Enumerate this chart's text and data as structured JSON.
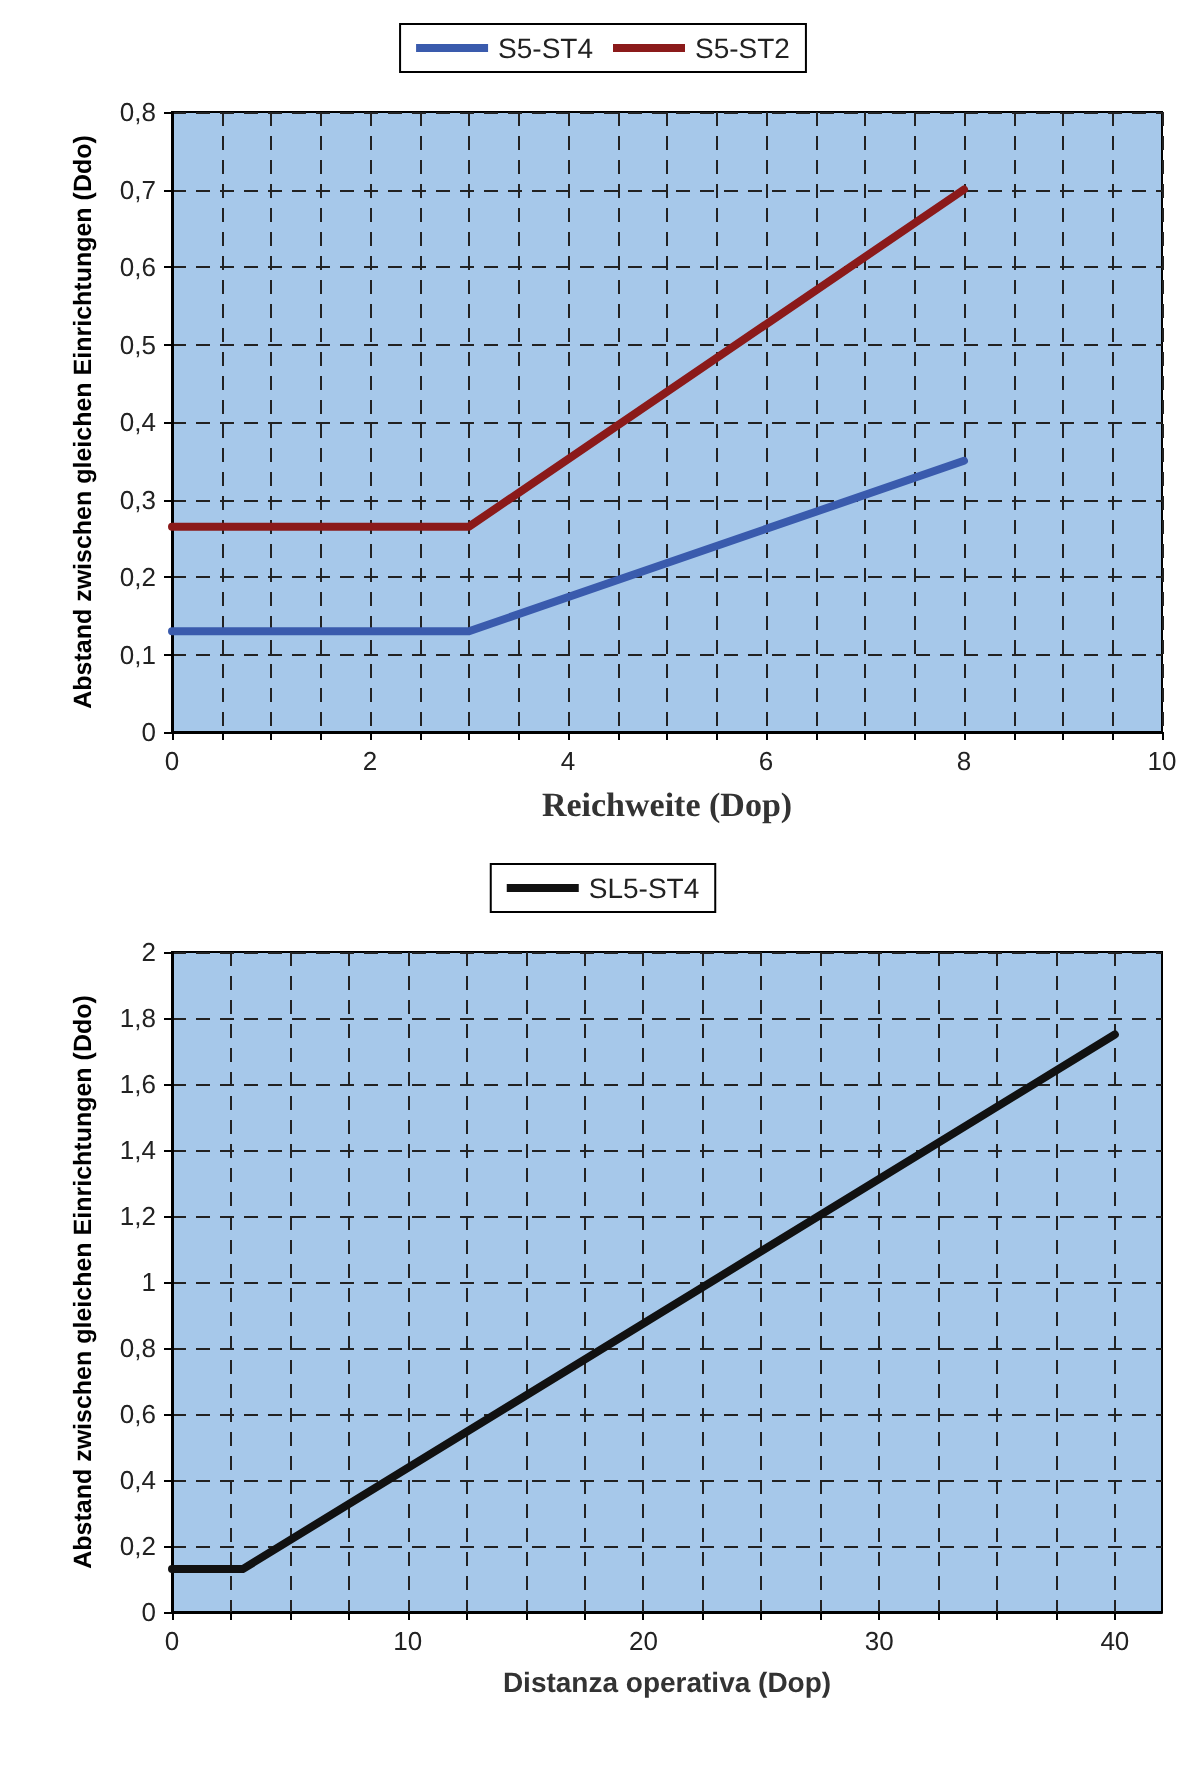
{
  "chart_data": [
    {
      "type": "line",
      "xlabel": "Reichweite (Dop)",
      "ylabel": "Abstand zwischen gleichen Einrichtungen (Ddo)",
      "xlim": [
        0,
        10
      ],
      "ylim": [
        0,
        0.8
      ],
      "xticks": [
        0,
        {
          "value": 0.5,
          "label": null
        },
        {
          "value": 1,
          "label": null
        },
        {
          "value": 1.5,
          "label": null
        },
        2,
        {
          "value": 2.5,
          "label": null
        },
        {
          "value": 3,
          "label": null
        },
        {
          "value": 3.5,
          "label": null
        },
        4,
        {
          "value": 4.5,
          "label": null
        },
        {
          "value": 5,
          "label": null
        },
        {
          "value": 5.5,
          "label": null
        },
        6,
        {
          "value": 6.5,
          "label": null
        },
        {
          "value": 7,
          "label": null
        },
        {
          "value": 7.5,
          "label": null
        },
        8,
        {
          "value": 8.5,
          "label": null
        },
        {
          "value": 9,
          "label": null
        },
        {
          "value": 9.5,
          "label": null
        },
        10
      ],
      "yticks": [
        0,
        {
          "value": 0.1,
          "label": "0,1"
        },
        {
          "value": 0.2,
          "label": "0,2"
        },
        {
          "value": 0.3,
          "label": "0,3"
        },
        {
          "value": 0.4,
          "label": "0,4"
        },
        {
          "value": 0.5,
          "label": "0,5"
        },
        {
          "value": 0.6,
          "label": "0,6"
        },
        {
          "value": 0.7,
          "label": "0,7"
        },
        {
          "value": 0.8,
          "label": "0,8"
        }
      ],
      "grid": true,
      "legend": "top",
      "marker": "none",
      "line_style": "solid",
      "series": [
        {
          "name": "S5-ST4",
          "color": "#3a5bad",
          "x": [
            0,
            3,
            8
          ],
          "values": [
            0.13,
            0.13,
            0.35
          ]
        },
        {
          "name": "S5-ST2",
          "color": "#8b1a1a",
          "x": [
            0,
            3,
            8
          ],
          "values": [
            0.265,
            0.265,
            0.7
          ]
        }
      ]
    },
    {
      "type": "line",
      "xlabel": "Distanza operativa (Dop)",
      "ylabel": "Abstand zwischen gleichen Einrichtungen (Ddo)",
      "xlim": [
        0,
        42
      ],
      "ylim": [
        0,
        2
      ],
      "xticks": [
        0,
        {
          "value": 2.5,
          "label": null
        },
        {
          "value": 5,
          "label": null
        },
        {
          "value": 7.5,
          "label": null
        },
        10,
        {
          "value": 12.5,
          "label": null
        },
        {
          "value": 15,
          "label": null
        },
        {
          "value": 17.5,
          "label": null
        },
        20,
        {
          "value": 22.5,
          "label": null
        },
        {
          "value": 25,
          "label": null
        },
        {
          "value": 27.5,
          "label": null
        },
        30,
        {
          "value": 32.5,
          "label": null
        },
        {
          "value": 35,
          "label": null
        },
        {
          "value": 37.5,
          "label": null
        },
        40
      ],
      "yticks": [
        0,
        {
          "value": 0.2,
          "label": "0,2"
        },
        {
          "value": 0.4,
          "label": "0,4"
        },
        {
          "value": 0.6,
          "label": "0,6"
        },
        {
          "value": 0.8,
          "label": "0,8"
        },
        1,
        {
          "value": 1.2,
          "label": "1,2"
        },
        {
          "value": 1.4,
          "label": "1,4"
        },
        {
          "value": 1.6,
          "label": "1,6"
        },
        {
          "value": 1.8,
          "label": "1,8"
        },
        2
      ],
      "grid": true,
      "legend": "top",
      "marker": "none",
      "line_style": "solid",
      "series": [
        {
          "name": "SL5-ST4",
          "color": "#111111",
          "x": [
            0,
            3,
            40
          ],
          "values": [
            0.13,
            0.13,
            1.75
          ]
        }
      ]
    }
  ]
}
